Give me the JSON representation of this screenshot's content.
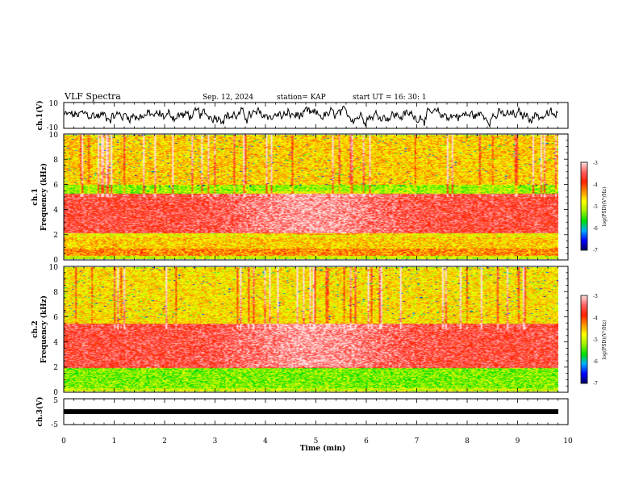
{
  "header": {
    "title": "VLF Spectra",
    "date": "Sep. 12, 2024",
    "station": "station= KAP",
    "start": "start  UT =   16: 30: 1"
  },
  "colors": {
    "axis": "#000000",
    "colormap": [
      "#000060",
      "#0000ff",
      "#00b0ff",
      "#00e000",
      "#a0f000",
      "#ffff00",
      "#ff9000",
      "#ff2000",
      "#ff6060",
      "#ffe0e0"
    ]
  },
  "chart_data": [
    {
      "type": "line",
      "panel": "ch1-voltage",
      "ylabel": "ch.1(V)",
      "ylim": [
        -10,
        10
      ],
      "yticks": [
        "10",
        "-10"
      ],
      "x_range": [
        0,
        9.8
      ],
      "series": [
        {
          "mean": 0,
          "amplitude": 4
        }
      ],
      "grid": false
    },
    {
      "type": "heatmap",
      "panel": "ch1-spectrogram",
      "ylabel": "ch.1\nFrequency (kHz)",
      "ylim": [
        0,
        10
      ],
      "yticks": [
        "0",
        "2",
        "4",
        "6",
        "8",
        "10"
      ],
      "x_range": [
        0,
        9.8
      ],
      "colorbar": {
        "label": "log(PSD)(V²/Hz)",
        "range": [
          -7,
          -3
        ],
        "ticks": [
          "-3",
          "-4",
          "-5",
          "-6",
          "-7"
        ]
      },
      "bands_khz": [
        {
          "from": 0,
          "to": 0.3,
          "level": -5
        },
        {
          "from": 0.3,
          "to": 0.9,
          "level": -4.3
        },
        {
          "from": 0.9,
          "to": 1.8,
          "level": -4.6
        },
        {
          "from": 1.8,
          "to": 2.1,
          "level": -4.8
        },
        {
          "from": 2.1,
          "to": 5.3,
          "level": -3.6
        },
        {
          "from": 5.3,
          "to": 6.0,
          "level": -5.2
        },
        {
          "from": 6.0,
          "to": 10,
          "level": -4.6
        }
      ]
    },
    {
      "type": "heatmap",
      "panel": "ch2-spectrogram",
      "ylabel": "ch.2\nFrequency (kHz)",
      "ylim": [
        0,
        10
      ],
      "yticks": [
        "0",
        "2",
        "4",
        "6",
        "8",
        "10"
      ],
      "x_range": [
        0,
        9.8
      ],
      "colorbar": {
        "label": "log(PSD)(V²/Hz)",
        "range": [
          -7,
          -3
        ],
        "ticks": [
          "-3",
          "-4",
          "-5",
          "-6",
          "-7"
        ]
      },
      "bands_khz": [
        {
          "from": 0,
          "to": 0.3,
          "level": -5
        },
        {
          "from": 0.3,
          "to": 1.9,
          "level": -5.3
        },
        {
          "from": 1.9,
          "to": 5.5,
          "level": -3.6
        },
        {
          "from": 5.5,
          "to": 10,
          "level": -4.7
        }
      ]
    },
    {
      "type": "line",
      "panel": "ch3-voltage",
      "ylabel": "ch.3(V)",
      "ylim": [
        -5,
        5
      ],
      "yticks": [
        "5",
        "-5"
      ],
      "x_range": [
        0,
        9.8
      ],
      "series": [
        {
          "mean": 0,
          "amplitude": 0.5
        }
      ],
      "xlabel": "Time (min)",
      "xticks": [
        "0",
        "1",
        "2",
        "3",
        "4",
        "5",
        "6",
        "7",
        "8",
        "9",
        "10"
      ],
      "xlim": [
        0,
        10
      ]
    }
  ]
}
